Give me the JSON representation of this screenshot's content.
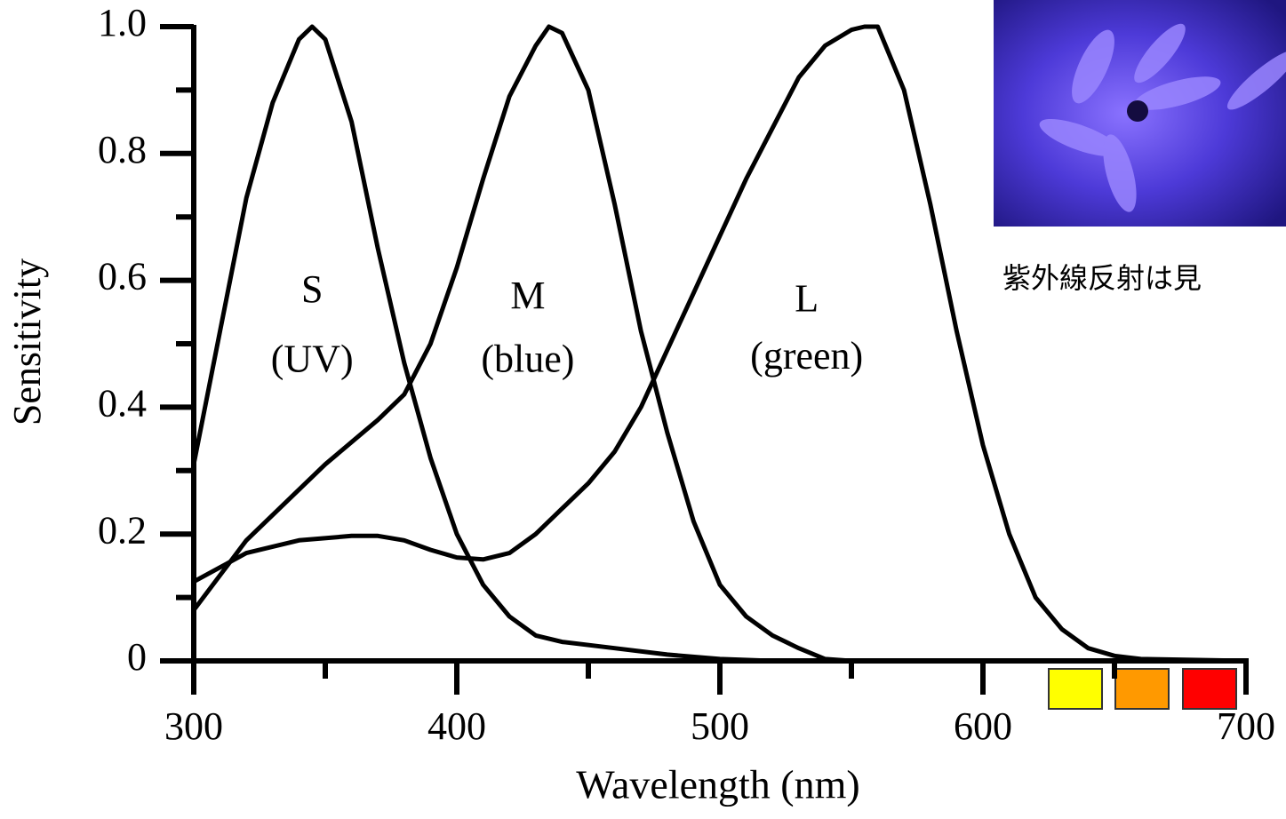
{
  "chart_data": {
    "type": "line",
    "x_label": "Wavelength (nm)",
    "y_label": "Sensitivity",
    "xlim": [
      300,
      700
    ],
    "ylim": [
      0,
      1
    ],
    "xticks": [
      300,
      400,
      500,
      600,
      700
    ],
    "xminorticks": [
      350,
      450,
      550,
      650
    ],
    "yticks": [
      0,
      0.2,
      0.4,
      0.6,
      0.8,
      {
        "value": 1,
        "label": "1.0"
      }
    ],
    "yminorticks": [
      0.1,
      0.3,
      0.5,
      0.7,
      0.9
    ],
    "series": [
      {
        "name": "S",
        "color": "#000000",
        "x": [
          300,
          310,
          320,
          330,
          340,
          345,
          350,
          360,
          370,
          380,
          390,
          400,
          410,
          420,
          430,
          440,
          460,
          480,
          500,
          520,
          700
        ],
        "values": [
          0.31,
          0.52,
          0.73,
          0.88,
          0.98,
          1.0,
          0.98,
          0.85,
          0.65,
          0.47,
          0.32,
          0.2,
          0.12,
          0.07,
          0.04,
          0.03,
          0.02,
          0.01,
          0.003,
          0,
          0
        ]
      },
      {
        "name": "M",
        "color": "#000000",
        "x": [
          300,
          320,
          340,
          350,
          370,
          380,
          390,
          400,
          410,
          420,
          430,
          435,
          440,
          450,
          460,
          470,
          480,
          490,
          500,
          510,
          520,
          530,
          540,
          550
        ],
        "values": [
          0.08,
          0.19,
          0.27,
          0.31,
          0.38,
          0.42,
          0.5,
          0.62,
          0.76,
          0.89,
          0.97,
          1.0,
          0.99,
          0.9,
          0.72,
          0.52,
          0.36,
          0.22,
          0.12,
          0.07,
          0.04,
          0.02,
          0.003,
          0
        ]
      },
      {
        "name": "L",
        "color": "#000000",
        "x": [
          300,
          320,
          340,
          360,
          370,
          380,
          390,
          400,
          410,
          420,
          430,
          440,
          450,
          460,
          470,
          480,
          490,
          500,
          510,
          520,
          530,
          540,
          550,
          555,
          560,
          570,
          580,
          590,
          600,
          610,
          620,
          630,
          640,
          650,
          660,
          700
        ],
        "values": [
          0.125,
          0.17,
          0.19,
          0.197,
          0.197,
          0.19,
          0.175,
          0.163,
          0.16,
          0.17,
          0.2,
          0.24,
          0.28,
          0.33,
          0.4,
          0.49,
          0.58,
          0.67,
          0.76,
          0.84,
          0.92,
          0.97,
          0.995,
          1.0,
          1.0,
          0.9,
          0.72,
          0.52,
          0.34,
          0.2,
          0.1,
          0.05,
          0.02,
          0.008,
          0.003,
          0
        ]
      }
    ],
    "annotations": [
      {
        "text": "S",
        "x": 345,
        "y": 0.58
      },
      {
        "text": "(UV)",
        "x": 345,
        "y": 0.47
      },
      {
        "text": "M",
        "x": 427,
        "y": 0.57
      },
      {
        "text": "(blue)",
        "x": 427,
        "y": 0.47
      },
      {
        "text": "L",
        "x": 533,
        "y": 0.565
      },
      {
        "text": "(green)",
        "x": 533,
        "y": 0.475
      }
    ],
    "caption": "紫外線反射は見"
  }
}
